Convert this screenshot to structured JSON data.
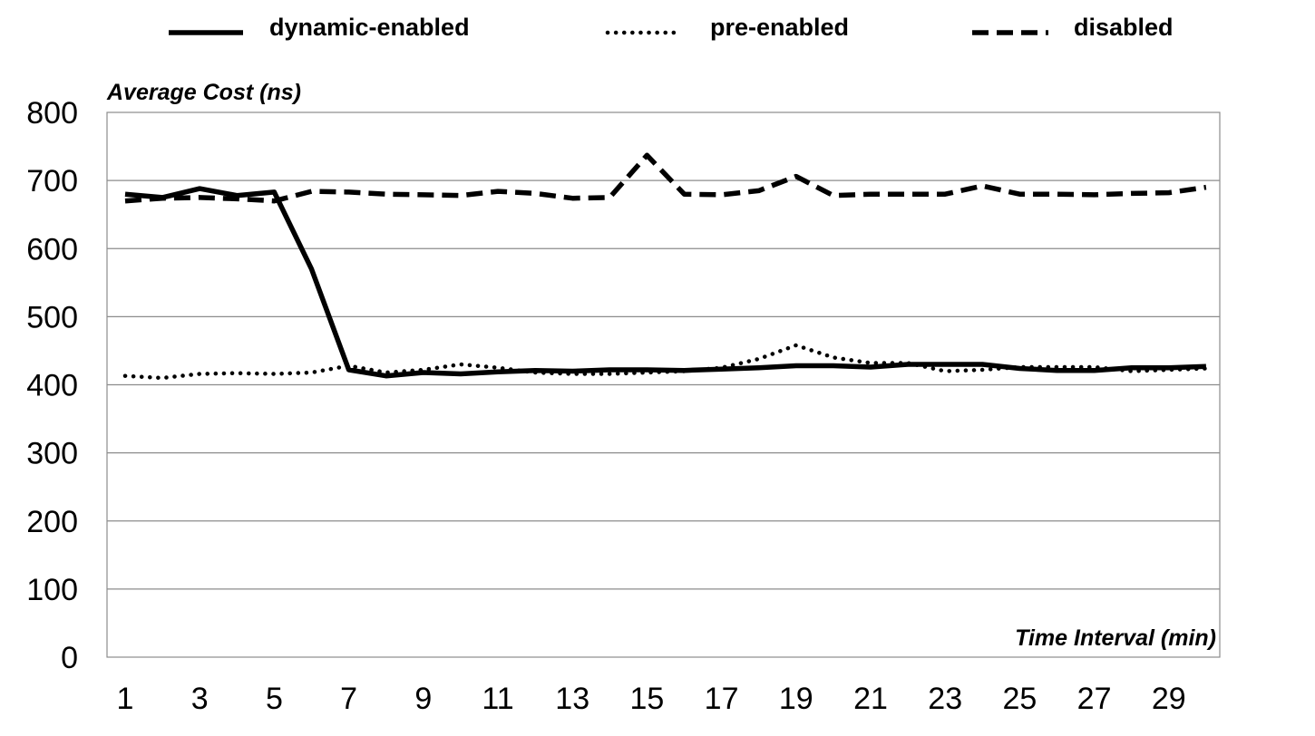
{
  "chart_data": {
    "type": "line",
    "xlabel": "Time Interval (min)",
    "ylabel": "Average Cost (ns)",
    "ylim": [
      0,
      800
    ],
    "yticks": [
      0,
      100,
      200,
      300,
      400,
      500,
      600,
      700,
      800
    ],
    "x": [
      1,
      2,
      3,
      4,
      5,
      6,
      7,
      8,
      9,
      10,
      11,
      12,
      13,
      14,
      15,
      16,
      17,
      18,
      19,
      20,
      21,
      22,
      23,
      24,
      25,
      26,
      27,
      28,
      29,
      30
    ],
    "xtick_labels": [
      "1",
      "3",
      "5",
      "7",
      "9",
      "11",
      "13",
      "15",
      "17",
      "19",
      "21",
      "23",
      "25",
      "27",
      "29"
    ],
    "xtick_values": [
      1,
      3,
      5,
      7,
      9,
      11,
      13,
      15,
      17,
      19,
      21,
      23,
      25,
      27,
      29
    ],
    "grid": true,
    "legend_position": "top",
    "series": [
      {
        "name": "dynamic-enabled",
        "style": "solid",
        "color": "#000000",
        "values": [
          680,
          675,
          688,
          678,
          683,
          570,
          422,
          413,
          418,
          416,
          419,
          421,
          420,
          422,
          422,
          421,
          423,
          425,
          428,
          428,
          426,
          430,
          430,
          430,
          424,
          421,
          421,
          425,
          425,
          427
        ]
      },
      {
        "name": "pre-enabled",
        "style": "dotted",
        "color": "#000000",
        "values": [
          413,
          410,
          416,
          417,
          416,
          418,
          428,
          418,
          422,
          430,
          425,
          418,
          416,
          416,
          418,
          420,
          425,
          438,
          458,
          440,
          432,
          432,
          420,
          422,
          426,
          426,
          426,
          420,
          422,
          424
        ]
      },
      {
        "name": "disabled",
        "style": "dashed",
        "color": "#000000",
        "values": [
          670,
          674,
          675,
          673,
          670,
          684,
          683,
          680,
          679,
          678,
          684,
          681,
          674,
          675,
          737,
          680,
          679,
          685,
          706,
          678,
          680,
          680,
          680,
          692,
          680,
          680,
          679,
          681,
          682,
          690
        ]
      }
    ]
  }
}
